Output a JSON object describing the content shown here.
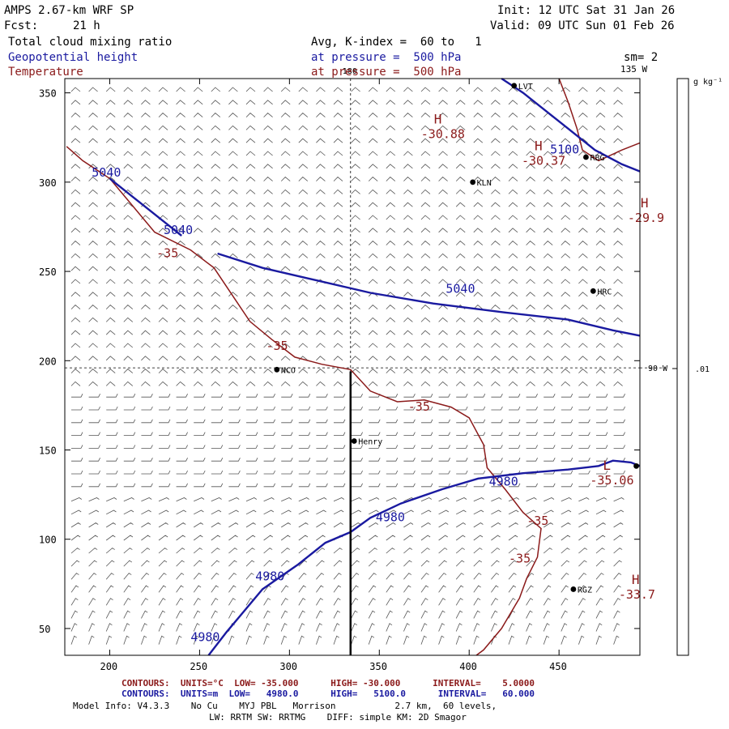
{
  "header": {
    "model": "AMPS 2.67-km WRF SP",
    "init": "Init: 12 UTC Sat 31 Jan 26",
    "fcst_label": "Fcst:",
    "fcst_value": "21 h",
    "valid": "Valid: 09 UTC Sun 01 Feb 26",
    "field1": "Total cloud mixing ratio",
    "field1_info": "Avg, K-index =  60 to   1",
    "field2": "Geopotential height",
    "field2_info": "at pressure =  500 hPa",
    "field2_sm": "sm= 2",
    "field3": "Temperature",
    "field3_info": "at pressure =  500 hPa"
  },
  "footer": {
    "red_line": "CONTOURS:  UNITS=°C  LOW= -35.000      HIGH= -30.000      INTERVAL=    5.0000",
    "blue_line": "CONTOURS:  UNITS=m  LOW=   4980.0      HIGH=   5100.0      INTERVAL=   60.000",
    "model_info": "Model Info: V4.3.3    No Cu    MYJ PBL   Morrison           2.7 km,  60 levels,",
    "model_info2": "LW: RRTM SW: RRTMG    DIFF: simple KM: 2D Smagor"
  },
  "colorbar": {
    "units": "g kg⁻¹",
    "tick_label": ".01"
  },
  "colors": {
    "height": "#1a1aa0",
    "temperature": "#8b1a1a",
    "axis": "#000000"
  },
  "chart_data": {
    "type": "contour map",
    "xlim": [
      175,
      495
    ],
    "ylim": [
      35,
      358
    ],
    "x_ticks": [
      200,
      250,
      300,
      350,
      400,
      450
    ],
    "y_ticks": [
      50,
      100,
      150,
      200,
      250,
      300,
      350
    ],
    "grid_lines": {
      "longitude_line": {
        "x": 334,
        "label": "180"
      },
      "latitude_line": {
        "y": 196,
        "label": "90 W"
      },
      "edge_label": "135 W"
    },
    "cross_section": {
      "x": 334,
      "y_start": 35,
      "y_end": 194
    },
    "stations": [
      {
        "name": "LVT",
        "x": 425,
        "y": 354
      },
      {
        "name": "RBG",
        "x": 465,
        "y": 314
      },
      {
        "name": "KLN",
        "x": 402,
        "y": 300
      },
      {
        "name": "HRC",
        "x": 469,
        "y": 239
      },
      {
        "name": "NCO",
        "x": 293,
        "y": 195
      },
      {
        "name": "Henry",
        "x": 336,
        "y": 155
      },
      {
        "name": "RGZ",
        "x": 458,
        "y": 72
      },
      {
        "name": "",
        "x": 493,
        "y": 141
      }
    ],
    "height_contours": [
      {
        "value": 5100,
        "points": [
          [
            418,
            358
          ],
          [
            430,
            350
          ],
          [
            455,
            330
          ],
          [
            470,
            318
          ],
          [
            485,
            310
          ],
          [
            495,
            306
          ]
        ]
      },
      {
        "value": 5040,
        "points": [
          [
            200,
            302
          ],
          [
            215,
            290
          ],
          [
            230,
            278
          ],
          [
            240,
            270
          ]
        ]
      },
      {
        "value": 5040,
        "points": [
          [
            260,
            260
          ],
          [
            285,
            252
          ],
          [
            315,
            245
          ],
          [
            345,
            238
          ],
          [
            380,
            232
          ],
          [
            420,
            227
          ],
          [
            455,
            223
          ],
          [
            480,
            217
          ],
          [
            495,
            214
          ]
        ]
      },
      {
        "value": 4980,
        "points": [
          [
            255,
            35
          ],
          [
            265,
            48
          ],
          [
            285,
            72
          ],
          [
            305,
            86
          ],
          [
            320,
            98
          ],
          [
            334,
            104
          ],
          [
            345,
            112
          ],
          [
            362,
            120
          ],
          [
            385,
            128
          ],
          [
            405,
            134
          ],
          [
            430,
            137
          ],
          [
            455,
            139
          ],
          [
            472,
            141
          ],
          [
            480,
            144
          ],
          [
            490,
            143
          ],
          [
            495,
            141
          ]
        ]
      }
    ],
    "temperature_contours": [
      {
        "value": -35,
        "points": [
          [
            176,
            320
          ],
          [
            185,
            312
          ],
          [
            200,
            302
          ],
          [
            210,
            290
          ],
          [
            225,
            272
          ],
          [
            245,
            262
          ],
          [
            258,
            252
          ],
          [
            268,
            237
          ],
          [
            278,
            222
          ],
          [
            290,
            212
          ],
          [
            303,
            202
          ],
          [
            318,
            198
          ],
          [
            334,
            195
          ],
          [
            345,
            183
          ],
          [
            360,
            177
          ],
          [
            375,
            178
          ],
          [
            390,
            174
          ],
          [
            400,
            168
          ],
          [
            408,
            153
          ],
          [
            410,
            140
          ],
          [
            420,
            128
          ],
          [
            430,
            115
          ],
          [
            440,
            106
          ],
          [
            438,
            90
          ],
          [
            432,
            78
          ],
          [
            428,
            67
          ],
          [
            418,
            50
          ],
          [
            408,
            38
          ],
          [
            404,
            35
          ]
        ]
      },
      {
        "value": -35,
        "points": [
          [
            450,
            358
          ],
          [
            455,
            345
          ],
          [
            460,
            330
          ],
          [
            463,
            318
          ],
          [
            472,
            312
          ],
          [
            485,
            318
          ],
          [
            495,
            322
          ]
        ]
      }
    ],
    "contour_labels": [
      {
        "text": "5100",
        "x": 445,
        "y": 316,
        "series": "height"
      },
      {
        "text": "5040",
        "x": 190,
        "y": 303,
        "series": "height"
      },
      {
        "text": "5040",
        "x": 230,
        "y": 271,
        "series": "height"
      },
      {
        "text": "5040",
        "x": 387,
        "y": 238,
        "series": "height"
      },
      {
        "text": "4980",
        "x": 411,
        "y": 130,
        "series": "height"
      },
      {
        "text": "4980",
        "x": 348,
        "y": 110,
        "series": "height"
      },
      {
        "text": "4980",
        "x": 281,
        "y": 77,
        "series": "height"
      },
      {
        "text": "4980",
        "x": 245,
        "y": 43,
        "series": "height"
      },
      {
        "text": "-35",
        "x": 226,
        "y": 258,
        "series": "temperature"
      },
      {
        "text": "-35",
        "x": 287,
        "y": 206,
        "series": "temperature"
      },
      {
        "text": "-35",
        "x": 366,
        "y": 172,
        "series": "temperature"
      },
      {
        "text": "-35",
        "x": 432,
        "y": 108,
        "series": "temperature"
      },
      {
        "text": "-35",
        "x": 422,
        "y": 87,
        "series": "temperature"
      }
    ],
    "extrema": [
      {
        "type": "H",
        "value": "-30.88",
        "x": 375,
        "y": 332
      },
      {
        "type": "H",
        "value": "-30.37",
        "x": 431,
        "y": 317
      },
      {
        "type": "H",
        "value": "-29.9",
        "x": 490,
        "y": 285
      },
      {
        "type": "L",
        "value": "-35.06",
        "x": 469,
        "y": 138
      },
      {
        "type": "H",
        "value": "-33.7",
        "x": 485,
        "y": 74
      }
    ]
  }
}
